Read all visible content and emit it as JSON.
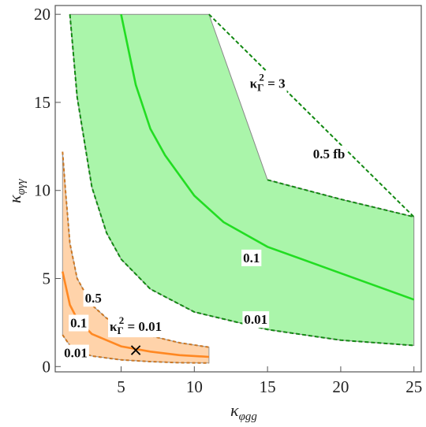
{
  "chart_data": {
    "type": "line",
    "xlim": [
      0.5,
      25.5
    ],
    "ylim": [
      -0.3,
      20.5
    ],
    "x_ticks": [
      "5",
      "10",
      "15",
      "20",
      "25"
    ],
    "y_ticks": [
      "0",
      "5",
      "10",
      "15",
      "20"
    ],
    "xlabel": {
      "base": "κ",
      "sub": "φgg"
    },
    "ylabel": {
      "base": "κ",
      "sub": "φγγ"
    },
    "colors": {
      "green_fill": "#aaf5aa",
      "green_line": "#22dd22",
      "green_dash": "#118811",
      "orange_fill": "#ffd3aa",
      "orange_line": "#ff8822",
      "orange_dash": "#cc7722",
      "marker": "#000000"
    },
    "regions": [
      {
        "name": "kappa_gamma_sq_3",
        "label": "κ_Γ² = 3",
        "label_at": [
          15,
          16
        ],
        "cap": 20,
        "x_max": 25,
        "curves": [
          {
            "label": "0.5 fb",
            "style": "dashed",
            "points": [
              [
                1.5,
                20
              ],
              [
                3,
                17.5
              ],
              [
                5,
                14.7
              ],
              [
                7,
                13.1
              ],
              [
                10,
                11.5
              ],
              [
                15,
                10.6
              ],
              [
                20,
                9.5
              ],
              [
                25,
                8.5
              ]
            ]
          },
          {
            "label": "0.1",
            "style": "solid",
            "points": [
              [
                5,
                20
              ],
              [
                6,
                16
              ],
              [
                7,
                13.5
              ],
              [
                8,
                12
              ],
              [
                10,
                9.7
              ],
              [
                12,
                8.2
              ],
              [
                15,
                6.8
              ],
              [
                20,
                5.3
              ],
              [
                25,
                3.8
              ]
            ]
          },
          {
            "label": "0.01",
            "style": "dashed",
            "points": [
              [
                1.5,
                20
              ],
              [
                2,
                15.3
              ],
              [
                3,
                10.2
              ],
              [
                4,
                7.6
              ],
              [
                5,
                6.1
              ],
              [
                7,
                4.4
              ],
              [
                10,
                3.1
              ],
              [
                15,
                2.1
              ],
              [
                20,
                1.5
              ],
              [
                25,
                1.2
              ]
            ]
          }
        ]
      },
      {
        "name": "kappa_gamma_sq_0_01",
        "label": "κ_Γ² = 0.01",
        "label_at": [
          6,
          2.2
        ],
        "x_min": 1,
        "x_max": 11,
        "curves": [
          {
            "label": "0.5",
            "style": "dashed",
            "points": [
              [
                1,
                12.2
              ],
              [
                1.2,
                10
              ],
              [
                1.5,
                7
              ],
              [
                2,
                5
              ],
              [
                3,
                3.5
              ],
              [
                4,
                2.75
              ],
              [
                5,
                2.3
              ],
              [
                7,
                1.75
              ],
              [
                9,
                1.35
              ],
              [
                11,
                1.1
              ]
            ]
          },
          {
            "label": "0.1",
            "style": "solid",
            "points": [
              [
                1,
                5.4
              ],
              [
                1.5,
                3.5
              ],
              [
                2,
                2.7
              ],
              [
                3,
                1.85
              ],
              [
                5,
                1.15
              ],
              [
                7,
                0.85
              ],
              [
                9,
                0.65
              ],
              [
                11,
                0.55
              ]
            ]
          },
          {
            "label": "0.01",
            "style": "dashed",
            "points": [
              [
                1,
                1.8
              ],
              [
                1.5,
                1.2
              ],
              [
                2,
                0.9
              ],
              [
                3,
                0.6
              ],
              [
                5,
                0.38
              ],
              [
                7,
                0.28
              ],
              [
                9,
                0.22
              ],
              [
                11,
                0.2
              ]
            ]
          }
        ]
      }
    ],
    "marker": {
      "x": 6,
      "y": 0.9,
      "symbol": "×"
    }
  }
}
